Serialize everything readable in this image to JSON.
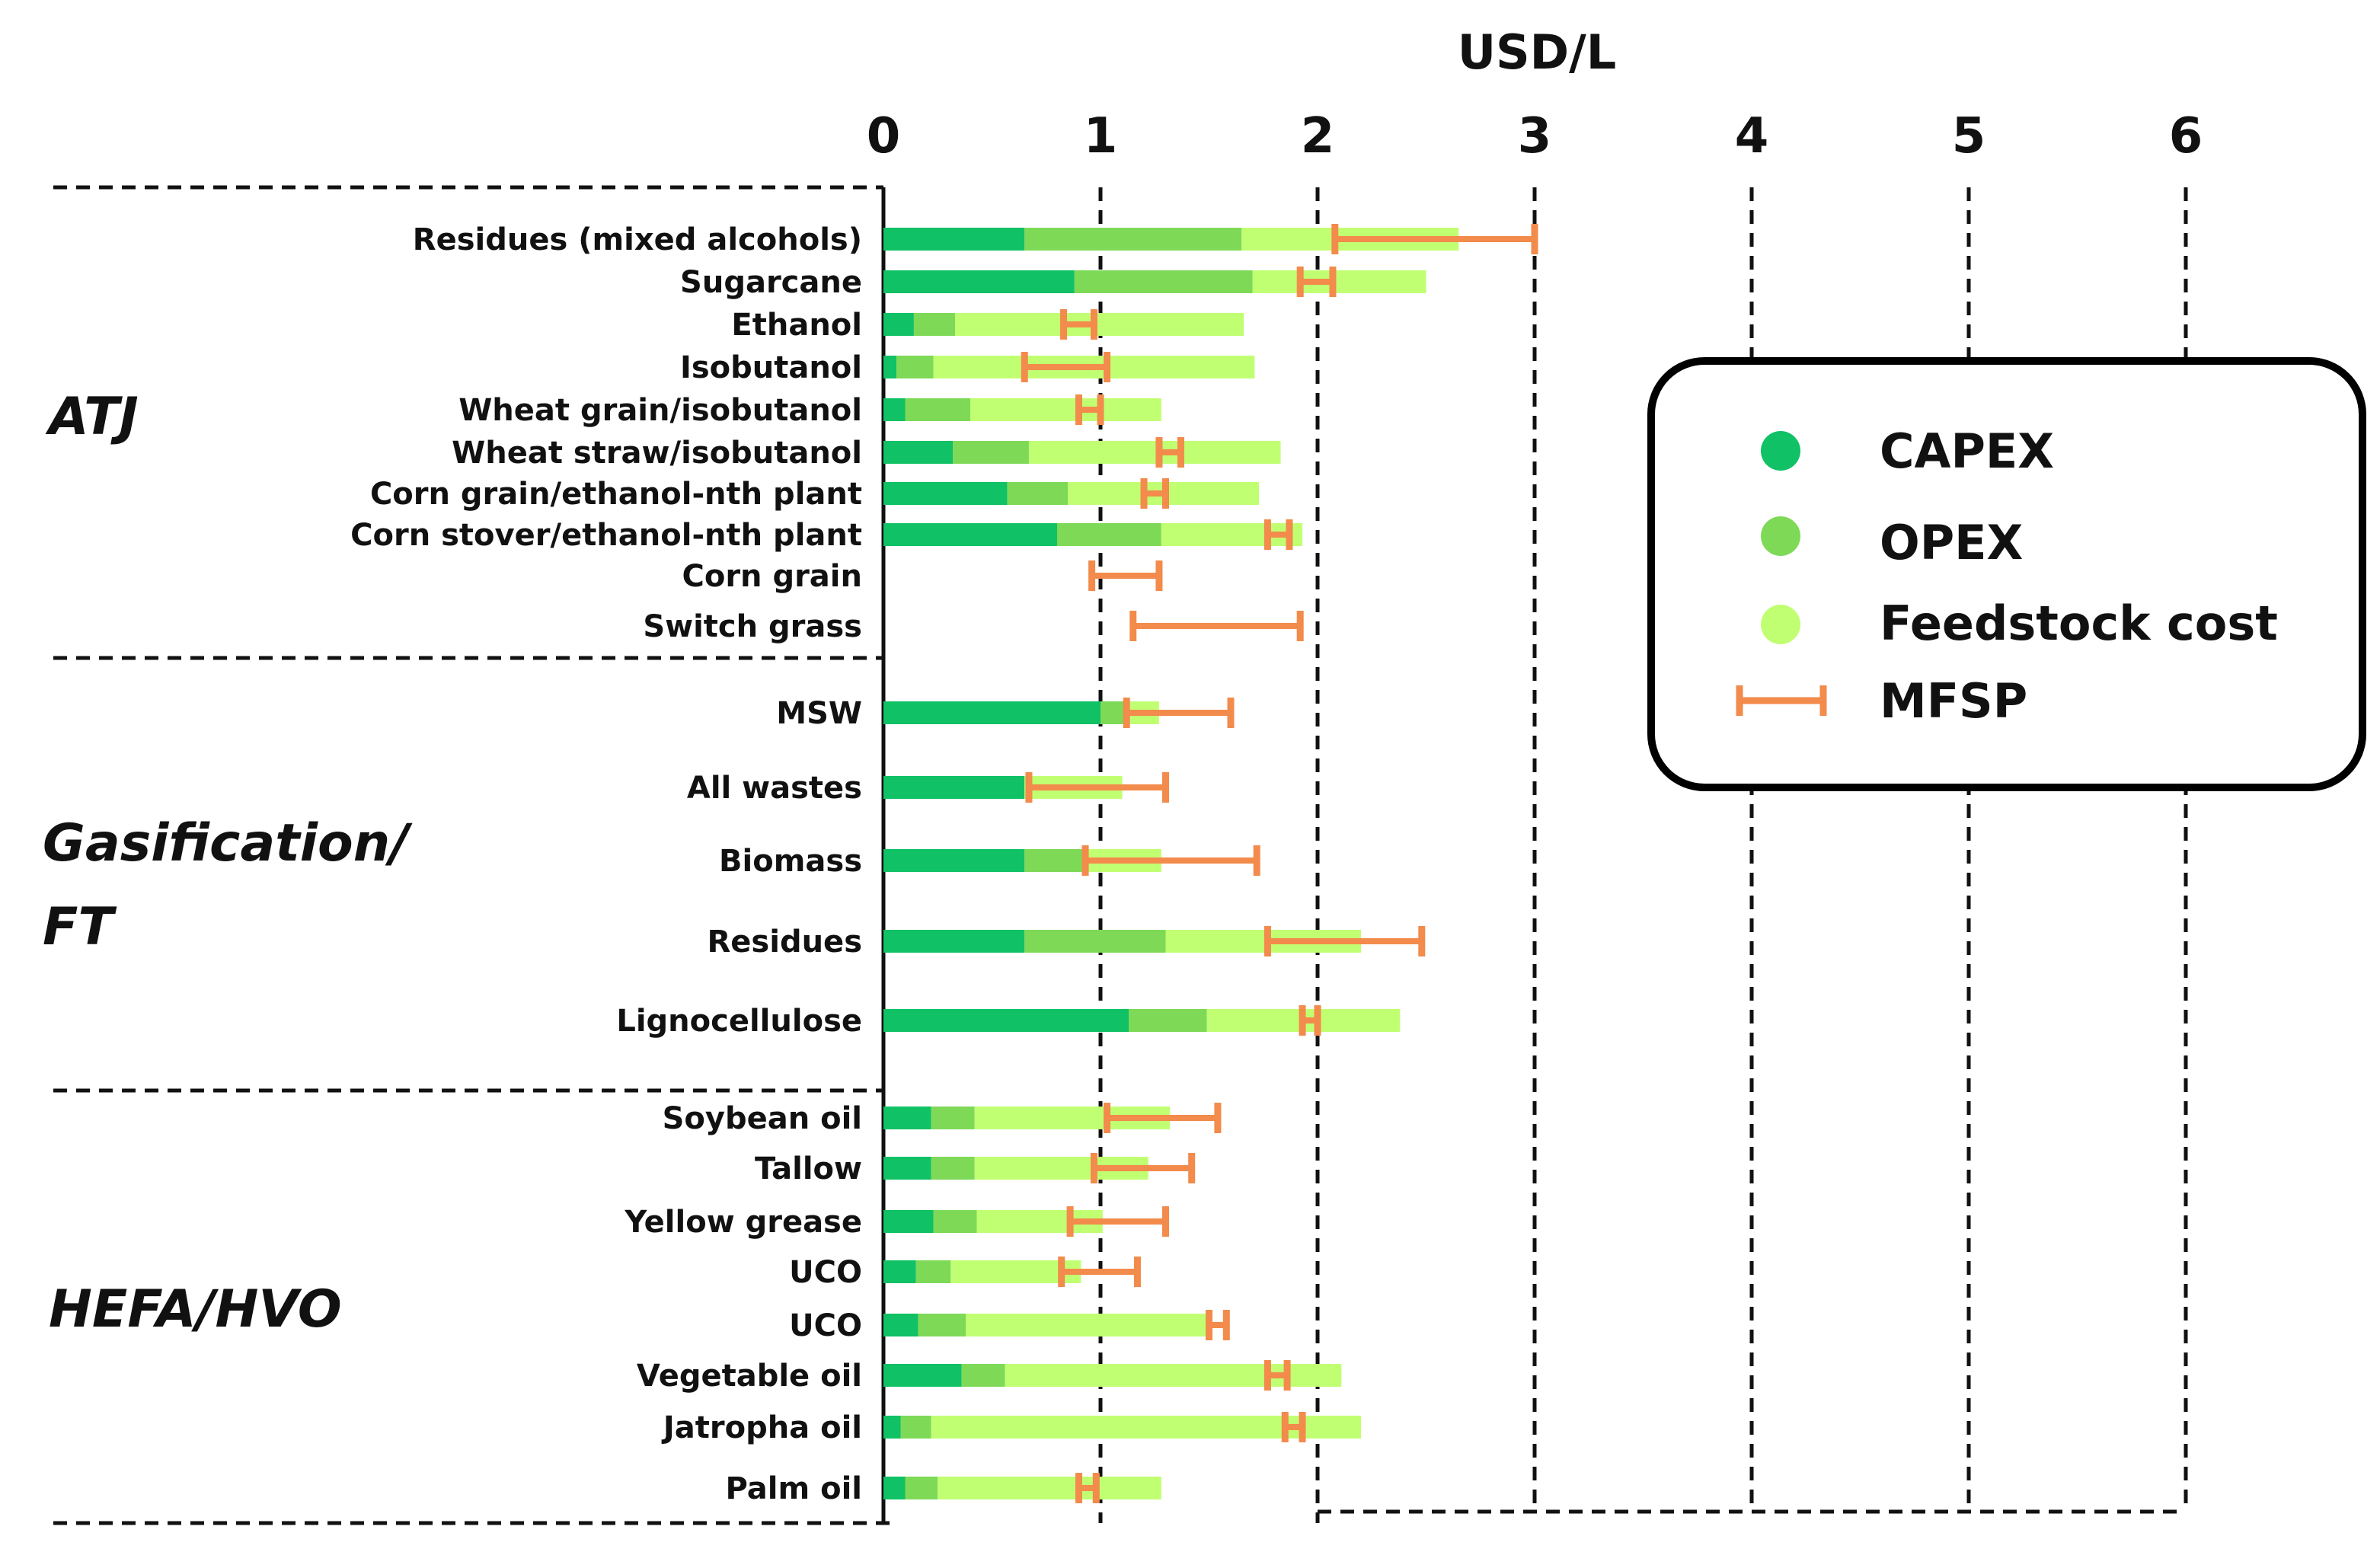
{
  "chart_data": {
    "type": "bar",
    "orientation": "horizontal",
    "stacked": true,
    "xlabel": "USD/L",
    "xlim": [
      0,
      6
    ],
    "xticks": [
      "0",
      "1",
      "2",
      "3",
      "4",
      "5",
      "6"
    ],
    "colors": {
      "CAPEX": "#10c165",
      "OPEX": "#7ed957",
      "Feedstock cost": "#c1ff72",
      "MFSP": "#f28b4b",
      "grid": "#111111"
    },
    "legend": {
      "position": "right",
      "entries": [
        "CAPEX",
        "OPEX",
        "Feedstock cost",
        "MFSP"
      ]
    },
    "groups": [
      {
        "name": "ATJ",
        "rows": [
          {
            "label": "Residues (mixed alcohols)",
            "capex": 0.65,
            "opex": 1.0,
            "feedstock": 1.0,
            "mfsp": [
              2.08,
              3.0
            ]
          },
          {
            "label": "Sugarcane",
            "capex": 0.88,
            "opex": 0.82,
            "feedstock": 0.8,
            "mfsp": [
              1.92,
              2.07
            ]
          },
          {
            "label": "Ethanol",
            "capex": 0.14,
            "opex": 0.19,
            "feedstock": 1.33,
            "mfsp": [
              0.83,
              0.97
            ]
          },
          {
            "label": "Isobutanol",
            "capex": 0.06,
            "opex": 0.17,
            "feedstock": 1.48,
            "mfsp": [
              0.65,
              1.03
            ]
          },
          {
            "label": "Wheat grain/isobutanol",
            "capex": 0.1,
            "opex": 0.3,
            "feedstock": 0.88,
            "mfsp": [
              0.9,
              1.0
            ]
          },
          {
            "label": "Wheat straw/isobutanol",
            "capex": 0.32,
            "opex": 0.35,
            "feedstock": 1.16,
            "mfsp": [
              1.27,
              1.37
            ]
          },
          {
            "label": "Corn grain/ethanol-nth plant",
            "capex": 0.57,
            "opex": 0.28,
            "feedstock": 0.88,
            "mfsp": [
              1.2,
              1.3
            ]
          },
          {
            "label": "Corn stover/ethanol-nth plant",
            "capex": 0.8,
            "opex": 0.48,
            "feedstock": 0.65,
            "mfsp": [
              1.77,
              1.87
            ]
          },
          {
            "label": "Corn grain",
            "capex": 0,
            "opex": 0,
            "feedstock": 0,
            "mfsp": [
              0.96,
              1.27
            ]
          },
          {
            "label": "Switch grass",
            "capex": 0,
            "opex": 0,
            "feedstock": 0,
            "mfsp": [
              1.15,
              1.92
            ]
          }
        ]
      },
      {
        "name": "Gasification/ FT",
        "rows": [
          {
            "label": "MSW",
            "capex": 1.0,
            "opex": 0.12,
            "feedstock": 0.15,
            "mfsp": [
              1.12,
              1.6
            ]
          },
          {
            "label": "All wastes",
            "capex": 0.65,
            "opex": 0.0,
            "feedstock": 0.45,
            "mfsp": [
              0.67,
              1.3
            ]
          },
          {
            "label": "Biomass",
            "capex": 0.65,
            "opex": 0.28,
            "feedstock": 0.35,
            "mfsp": [
              0.93,
              1.72
            ]
          },
          {
            "label": "Residues",
            "capex": 0.65,
            "opex": 0.65,
            "feedstock": 0.9,
            "mfsp": [
              1.77,
              2.48
            ]
          },
          {
            "label": "Lignocellulose",
            "capex": 1.13,
            "opex": 0.36,
            "feedstock": 0.89,
            "mfsp": [
              1.93,
              2.0
            ]
          }
        ]
      },
      {
        "name": "HEFA/HVO",
        "rows": [
          {
            "label": "Soybean oil",
            "capex": 0.22,
            "opex": 0.2,
            "feedstock": 0.9,
            "mfsp": [
              1.03,
              1.54
            ]
          },
          {
            "label": "Tallow",
            "capex": 0.22,
            "opex": 0.2,
            "feedstock": 0.8,
            "mfsp": [
              0.97,
              1.42
            ]
          },
          {
            "label": "Yellow grease",
            "capex": 0.23,
            "opex": 0.2,
            "feedstock": 0.58,
            "mfsp": [
              0.86,
              1.3
            ]
          },
          {
            "label": "UCO",
            "capex": 0.15,
            "opex": 0.16,
            "feedstock": 0.6,
            "mfsp": [
              0.82,
              1.17
            ]
          },
          {
            "label": "UCO",
            "capex": 0.16,
            "opex": 0.22,
            "feedstock": 1.12,
            "mfsp": [
              1.5,
              1.58
            ]
          },
          {
            "label": "Vegetable oil",
            "capex": 0.36,
            "opex": 0.2,
            "feedstock": 1.55,
            "mfsp": [
              1.77,
              1.86
            ]
          },
          {
            "label": "Jatropha oil",
            "capex": 0.08,
            "opex": 0.14,
            "feedstock": 1.98,
            "mfsp": [
              1.85,
              1.93
            ]
          },
          {
            "label": "Palm oil",
            "capex": 0.1,
            "opex": 0.15,
            "feedstock": 1.03,
            "mfsp": [
              0.9,
              0.98
            ]
          }
        ]
      }
    ]
  }
}
